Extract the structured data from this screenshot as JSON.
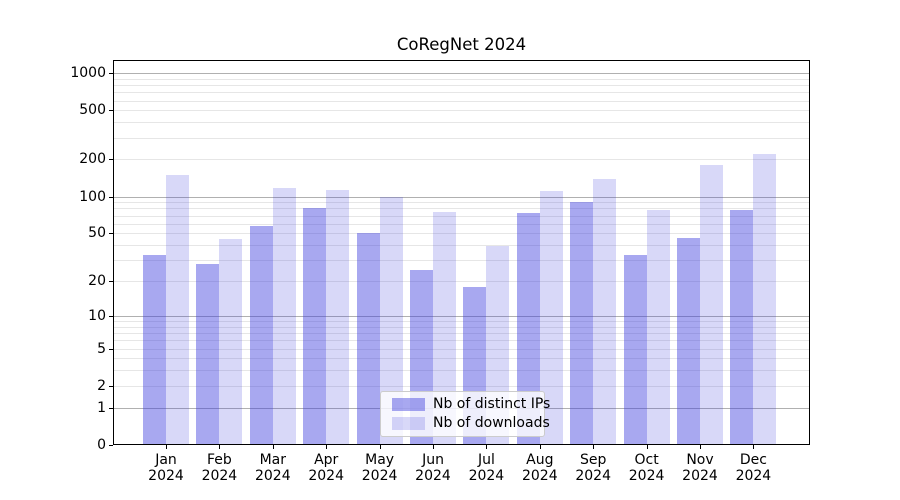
{
  "title": "CoRegNet 2024",
  "chart_data": {
    "type": "bar",
    "title": "CoRegNet 2024",
    "categories": [
      "Jan",
      "Feb",
      "Mar",
      "Apr",
      "May",
      "Jun",
      "Jul",
      "Aug",
      "Sep",
      "Oct",
      "Nov",
      "Dec"
    ],
    "year_label": "2024",
    "series": [
      {
        "name": "Nb of distinct IPs",
        "color": "rgba(62,62,222,0.45)",
        "values": [
          33,
          28,
          57,
          81,
          50,
          25,
          18,
          73,
          90,
          33,
          46,
          78
        ]
      },
      {
        "name": "Nb of downloads",
        "color": "rgba(62,62,222,0.2)",
        "values": [
          150,
          45,
          117,
          112,
          100,
          75,
          39,
          110,
          140,
          78,
          180,
          220
        ]
      }
    ],
    "xlabel": "",
    "ylabel": "",
    "yscale": "log1p",
    "ylim": [
      0,
      1273
    ],
    "y_tick_values": [
      0,
      1,
      2,
      5,
      10,
      20,
      50,
      100,
      200,
      500,
      1000
    ],
    "y_major_gridlines": [
      1,
      10,
      100,
      1000
    ],
    "y_minor_gridlines": [
      2,
      3,
      4,
      5,
      6,
      7,
      8,
      9,
      20,
      30,
      40,
      50,
      60,
      70,
      80,
      90,
      200,
      300,
      400,
      500,
      600,
      700,
      800,
      900
    ],
    "grid": true,
    "legend_position": "lower center"
  },
  "colors": {
    "bar_distinct_ips": "rgba(62,62,222,0.45)",
    "bar_downloads": "rgba(62,62,222,0.2)",
    "grid_major": "#b0b0b0",
    "grid_minor": "#e6e6e6",
    "axis": "#000000",
    "background": "#ffffff",
    "legend_background": "rgba(255,255,255,0.8)",
    "legend_border": "#cccccc"
  }
}
